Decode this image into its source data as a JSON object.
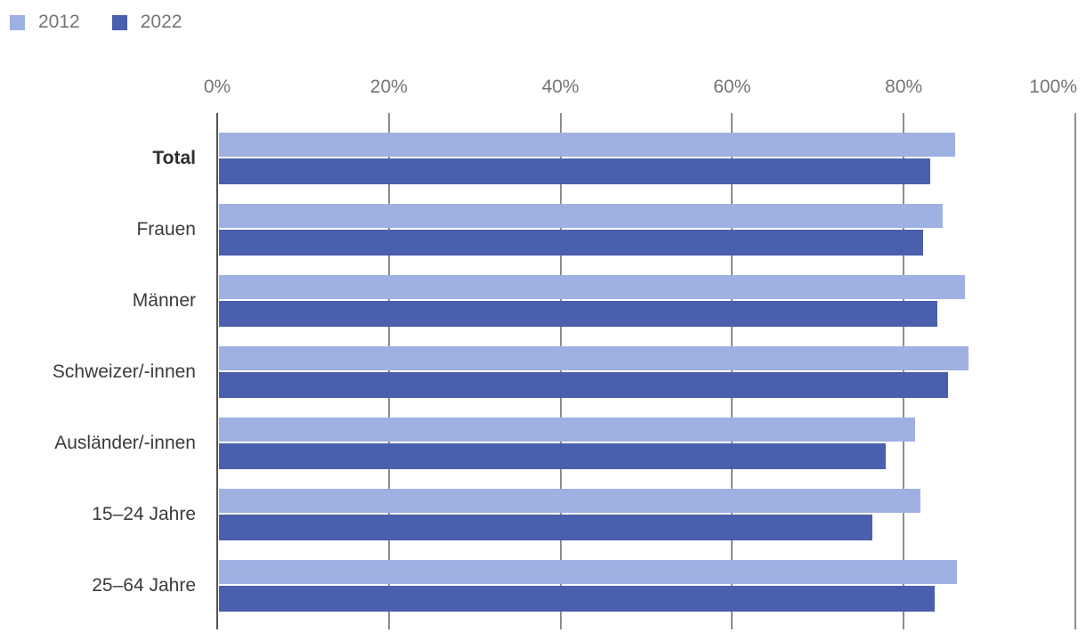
{
  "chart_data": {
    "type": "bar",
    "orientation": "horizontal",
    "title": "",
    "categories": [
      "Total",
      "Frauen",
      "Männer",
      "Schweizer/-innen",
      "Ausländer/-innen",
      "15–24 Jahre",
      "25–64 Jahre"
    ],
    "emphasized_category": "Total",
    "series": [
      {
        "name": "2012",
        "color": "#9fb0e3",
        "values": [
          86.0,
          84.5,
          87.1,
          87.6,
          81.3,
          82.0,
          86.2
        ]
      },
      {
        "name": "2022",
        "color": "#4a5fad",
        "values": [
          83.1,
          82.3,
          83.9,
          85.2,
          77.9,
          76.4,
          83.6
        ]
      }
    ],
    "x_axis": {
      "min": 0,
      "max": 100,
      "tick_values": [
        0,
        20,
        40,
        60,
        80,
        100
      ],
      "tick_labels": [
        "0%",
        "20%",
        "40%",
        "60%",
        "80%",
        "100%"
      ],
      "grid": true,
      "unit": "%"
    },
    "legend_position": "top-left",
    "legend": [
      "2012",
      "2022"
    ]
  }
}
